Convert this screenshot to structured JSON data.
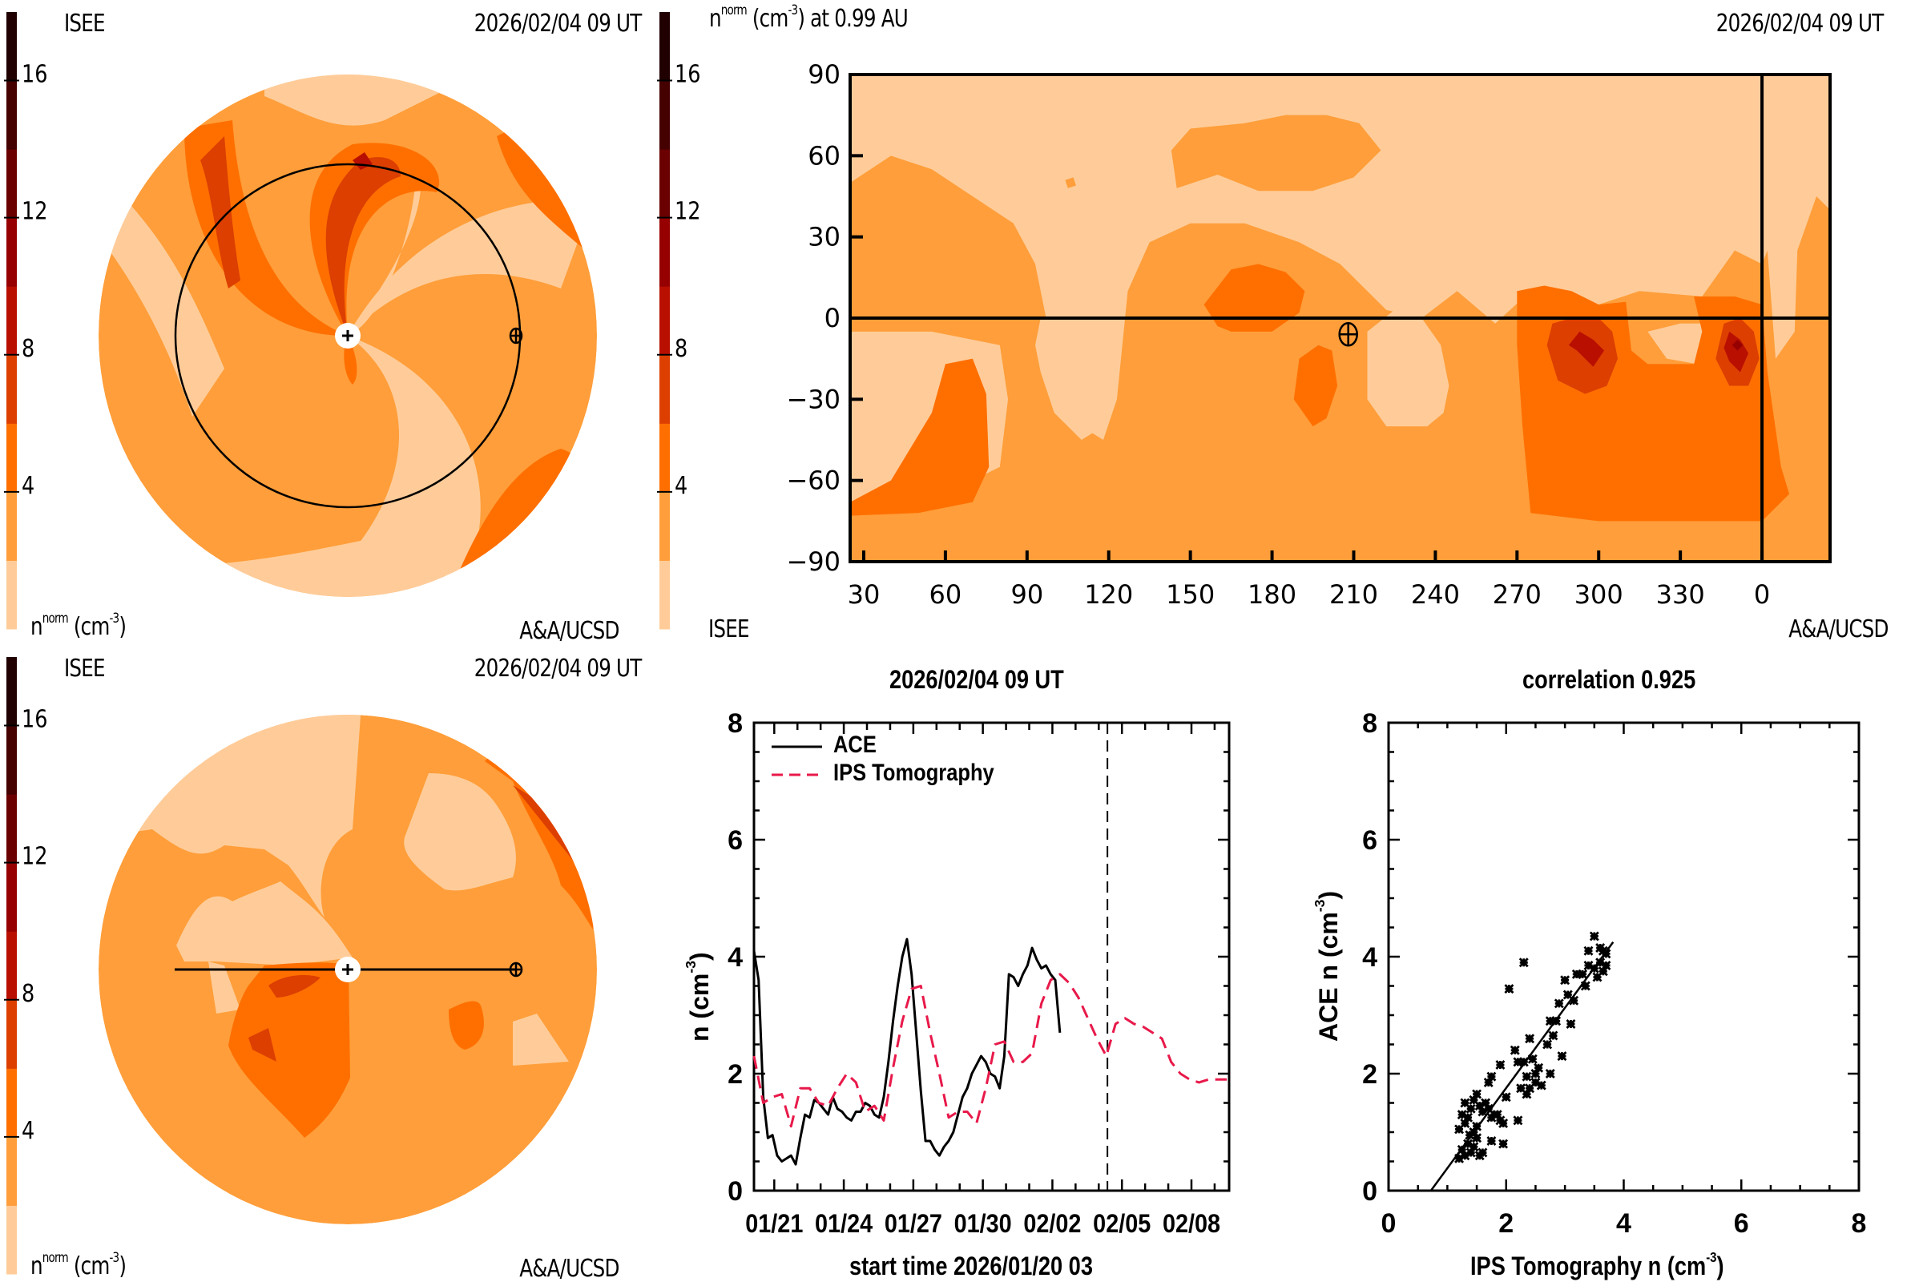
{
  "colorbar": {
    "levels": [
      0,
      2,
      4,
      6,
      8,
      10,
      12,
      14,
      16,
      18
    ],
    "colors": [
      "#FFCC99",
      "#FF9E3A",
      "#FF6F00",
      "#DC3F00",
      "#B90F00",
      "#960000",
      "#6A0000",
      "#450000",
      "#200000"
    ],
    "ticks": [
      "4",
      "8",
      "12",
      "16"
    ],
    "tick_values": [
      4,
      8,
      12,
      16
    ],
    "unit_label_base": "n",
    "unit_label_sup": "norm",
    "unit_label_units": "(cm",
    "unit_label_units_sup": "-3",
    "unit_label_close": ")"
  },
  "panel_top_left": {
    "source": "ISEE",
    "timestamp": "2026/02/04 09 UT",
    "credit": "A&A/UCSD",
    "view": "ecliptic (top-down)",
    "markers": [
      "sun-marker",
      "earth-marker",
      "earth-orbit"
    ]
  },
  "panel_top_right": {
    "title_prefix": "n",
    "title_sup": "norm",
    "title_units": "(cm",
    "title_units_sup": "-3",
    "title_suffix": ") at 0.99 AU",
    "timestamp": "2026/02/04 09 UT",
    "source": "ISEE",
    "credit": "A&A/UCSD",
    "x_ticks": [
      "30",
      "60",
      "90",
      "120",
      "150",
      "180",
      "210",
      "240",
      "270",
      "300",
      "330",
      "0"
    ],
    "y_ticks": [
      "90",
      "60",
      "30",
      "0",
      "−30",
      "−60",
      "−90"
    ],
    "x_range_deg": [
      25,
      385
    ],
    "y_range_deg": [
      -90,
      90
    ],
    "earth_marker": {
      "lon": 208,
      "lat": -6
    },
    "vertical_line_lon": 360,
    "horizontal_line_lat": 0
  },
  "panel_bottom_left": {
    "source": "ISEE",
    "timestamp": "2026/02/04 09 UT",
    "credit": "A&A/UCSD",
    "view": "meridional (side)",
    "markers": [
      "sun-marker",
      "earth-marker",
      "sun-earth-line"
    ]
  },
  "chart_data": [
    {
      "type": "line",
      "title": "2026/02/04 09 UT",
      "xlabel": "start time 2026/01/20 03",
      "ylabel": "n (cm",
      "ylabel_sup": "-3",
      "ylabel_close": ")",
      "ylim": [
        0,
        8
      ],
      "y_ticks": [
        "0",
        "2",
        "4",
        "6",
        "8"
      ],
      "y_tick_values": [
        0,
        2,
        4,
        6,
        8
      ],
      "xlim_days": [
        0,
        20.5
      ],
      "x_ticks": [
        "01/21",
        "01/24",
        "01/27",
        "01/30",
        "02/02",
        "02/05",
        "02/08"
      ],
      "x_tick_days": [
        0.875,
        3.875,
        6.875,
        9.875,
        12.875,
        15.875,
        18.875
      ],
      "current_time_day": 15.25,
      "legend": [
        "ACE",
        "IPS Tomography"
      ],
      "legend_position": "top-left",
      "series": [
        {
          "name": "ACE",
          "color": "#000000",
          "style": "solid",
          "x": [
            0.0,
            0.2,
            0.4,
            0.6,
            0.8,
            1.0,
            1.2,
            1.4,
            1.6,
            1.8,
            2.0,
            2.2,
            2.4,
            2.6,
            2.8,
            3.0,
            3.2,
            3.4,
            3.6,
            3.8,
            4.0,
            4.2,
            4.4,
            4.6,
            4.8,
            5.0,
            5.2,
            5.4,
            5.6,
            5.8,
            6.0,
            6.2,
            6.4,
            6.6,
            6.8,
            7.0,
            7.2,
            7.4,
            7.6,
            7.8,
            8.0,
            8.2,
            8.4,
            8.6,
            8.8,
            9.0,
            9.2,
            9.4,
            9.6,
            9.8,
            10.0,
            10.2,
            10.4,
            10.6,
            10.8,
            11.0,
            11.2,
            11.4,
            11.6,
            11.8,
            12.0,
            12.2,
            12.4,
            12.6,
            12.8,
            13.0,
            13.2,
            13.4,
            13.6,
            13.8,
            14.0,
            14.2,
            14.4,
            14.6,
            14.8,
            15.0,
            15.2
          ],
          "values": [
            4.1,
            3.6,
            1.6,
            0.9,
            0.95,
            0.6,
            0.5,
            0.55,
            0.6,
            0.45,
            0.9,
            1.3,
            1.25,
            1.55,
            1.5,
            1.4,
            1.3,
            1.6,
            1.4,
            1.35,
            1.25,
            1.2,
            1.35,
            1.35,
            1.5,
            1.45,
            1.3,
            1.25,
            1.6,
            2.2,
            2.9,
            3.5,
            4.0,
            4.3,
            3.7,
            2.7,
            1.7,
            0.85,
            0.85,
            0.7,
            0.6,
            0.75,
            0.85,
            1.0,
            1.3,
            1.6,
            1.75,
            2.0,
            2.15,
            2.3,
            2.2,
            2.0,
            1.95,
            1.75,
            2.3,
            3.7,
            3.65,
            3.5,
            3.7,
            3.85,
            4.15,
            3.95,
            3.8,
            3.85,
            3.7,
            3.6,
            2.7,
            null,
            null,
            null,
            null,
            null,
            null,
            null,
            null,
            null,
            null
          ]
        },
        {
          "name": "IPS Tomography",
          "color": "#E8194A",
          "style": "dashed",
          "x": [
            0.0,
            0.4,
            0.8,
            1.2,
            1.6,
            2.0,
            2.4,
            2.8,
            3.2,
            3.6,
            4.0,
            4.4,
            4.8,
            5.2,
            5.6,
            6.0,
            6.4,
            6.8,
            7.2,
            7.6,
            8.0,
            8.4,
            8.8,
            9.2,
            9.6,
            10.0,
            10.4,
            10.8,
            11.2,
            11.6,
            12.0,
            12.4,
            12.8,
            13.2,
            13.6,
            14.0,
            14.4,
            14.8,
            15.2,
            15.6,
            16.0,
            16.4,
            16.8,
            17.2,
            17.6,
            18.0,
            18.4,
            18.8,
            19.2,
            19.6,
            20.0,
            20.4
          ],
          "values": [
            2.3,
            1.5,
            1.6,
            1.65,
            1.1,
            1.75,
            1.75,
            1.5,
            1.45,
            1.75,
            2.0,
            1.85,
            1.35,
            1.45,
            1.2,
            2.1,
            2.9,
            3.45,
            3.5,
            2.7,
            2.0,
            1.25,
            1.35,
            1.35,
            1.15,
            1.75,
            2.5,
            2.55,
            2.2,
            2.2,
            2.35,
            3.2,
            3.6,
            3.7,
            3.55,
            3.3,
            2.95,
            2.6,
            2.3,
            2.85,
            2.95,
            2.85,
            2.8,
            2.7,
            2.6,
            2.2,
            2.0,
            1.9,
            1.85,
            1.9,
            1.9,
            1.9
          ]
        }
      ]
    },
    {
      "type": "scatter",
      "title": "correlation 0.925",
      "correlation": 0.925,
      "xlabel": "IPS Tomography n (cm",
      "xlabel_sup": "-3",
      "xlabel_close": ")",
      "ylabel": "ACE n (cm",
      "ylabel_sup": "-3",
      "ylabel_close": ")",
      "xlim": [
        0,
        8
      ],
      "ylim": [
        0,
        8
      ],
      "x_ticks": [
        "0",
        "2",
        "4",
        "6",
        "8"
      ],
      "y_ticks": [
        "0",
        "2",
        "4",
        "6",
        "8"
      ],
      "tick_values": [
        0,
        2,
        4,
        6,
        8
      ],
      "fit_line": {
        "x": [
          0.72,
          3.82
        ],
        "y": [
          0.0,
          4.25
        ]
      },
      "marker": "x",
      "points": [
        [
          1.2,
          0.55
        ],
        [
          1.25,
          0.7
        ],
        [
          1.3,
          0.6
        ],
        [
          1.35,
          0.8
        ],
        [
          1.4,
          0.65
        ],
        [
          1.45,
          0.75
        ],
        [
          1.5,
          0.9
        ],
        [
          1.55,
          0.6
        ],
        [
          1.6,
          0.65
        ],
        [
          1.2,
          1.05
        ],
        [
          1.25,
          1.3
        ],
        [
          1.3,
          1.5
        ],
        [
          1.35,
          1.25
        ],
        [
          1.4,
          1.4
        ],
        [
          1.45,
          1.55
        ],
        [
          1.5,
          1.65
        ],
        [
          1.55,
          1.45
        ],
        [
          1.6,
          1.35
        ],
        [
          1.65,
          1.5
        ],
        [
          1.7,
          1.4
        ],
        [
          1.75,
          1.25
        ],
        [
          1.8,
          1.3
        ],
        [
          1.85,
          1.3
        ],
        [
          1.9,
          1.2
        ],
        [
          1.95,
          1.15
        ],
        [
          1.5,
          1.1
        ],
        [
          1.45,
          1.0
        ],
        [
          1.38,
          0.95
        ],
        [
          1.3,
          1.15
        ],
        [
          1.75,
          0.85
        ],
        [
          1.95,
          0.8
        ],
        [
          1.7,
          1.85
        ],
        [
          1.75,
          1.95
        ],
        [
          1.9,
          2.15
        ],
        [
          2.0,
          1.6
        ],
        [
          2.05,
          3.45
        ],
        [
          2.15,
          2.4
        ],
        [
          2.2,
          2.2
        ],
        [
          2.2,
          1.2
        ],
        [
          2.25,
          1.75
        ],
        [
          2.3,
          3.9
        ],
        [
          2.3,
          2.2
        ],
        [
          2.35,
          1.95
        ],
        [
          2.35,
          1.65
        ],
        [
          2.4,
          1.75
        ],
        [
          2.4,
          2.6
        ],
        [
          2.45,
          2.25
        ],
        [
          2.5,
          2.0
        ],
        [
          2.5,
          1.85
        ],
        [
          2.55,
          2.1
        ],
        [
          2.6,
          1.8
        ],
        [
          2.7,
          2.5
        ],
        [
          2.75,
          2.0
        ],
        [
          2.75,
          2.9
        ],
        [
          2.8,
          2.65
        ],
        [
          2.85,
          2.9
        ],
        [
          2.9,
          3.2
        ],
        [
          2.95,
          2.3
        ],
        [
          3.0,
          3.6
        ],
        [
          3.05,
          3.35
        ],
        [
          3.1,
          2.85
        ],
        [
          3.15,
          3.25
        ],
        [
          3.2,
          3.7
        ],
        [
          3.3,
          3.7
        ],
        [
          3.35,
          3.5
        ],
        [
          3.4,
          3.85
        ],
        [
          3.4,
          4.1
        ],
        [
          3.5,
          4.35
        ],
        [
          3.5,
          3.8
        ],
        [
          3.55,
          3.65
        ],
        [
          3.6,
          3.9
        ],
        [
          3.6,
          4.15
        ],
        [
          3.65,
          3.75
        ],
        [
          3.7,
          4.05
        ],
        [
          3.7,
          3.85
        ],
        [
          3.65,
          4.1
        ]
      ]
    }
  ]
}
